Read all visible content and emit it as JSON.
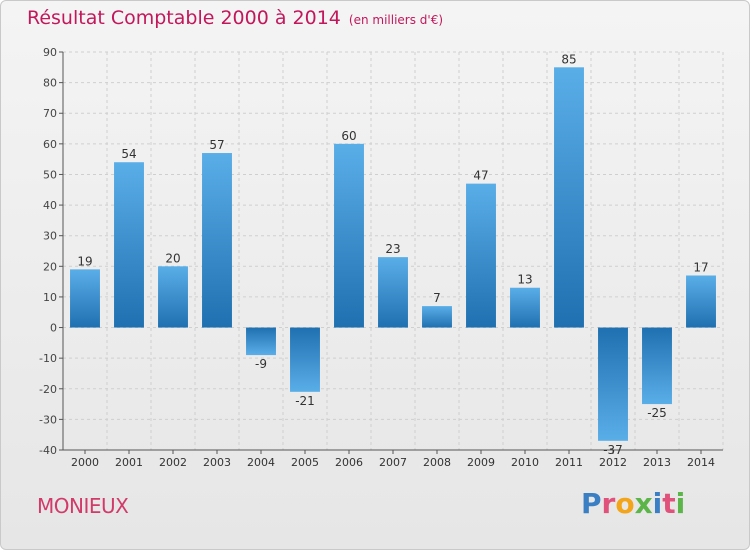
{
  "header": {
    "title": "Résultat Comptable 2000 à 2014",
    "subtitle": "(en milliers d'€)"
  },
  "footer": {
    "town": "MONIEUX",
    "logo_letters": [
      "P",
      "r",
      "o",
      "x",
      "i",
      "t",
      "i"
    ],
    "logo_colors": [
      "#3a7fc4",
      "#e0527c",
      "#f2a51a",
      "#5bb548",
      "#3a7fc4",
      "#e0527c",
      "#5bb548"
    ]
  },
  "chart_data": {
    "type": "bar",
    "categories": [
      "2000",
      "2001",
      "2002",
      "2003",
      "2004",
      "2005",
      "2006",
      "2007",
      "2008",
      "2009",
      "2010",
      "2011",
      "2012",
      "2013",
      "2014"
    ],
    "values": [
      19,
      54,
      20,
      57,
      -9,
      -21,
      60,
      23,
      7,
      47,
      13,
      85,
      -37,
      -25,
      17
    ],
    "ylim": [
      -40,
      90
    ],
    "yticks": [
      -40,
      -30,
      -20,
      -10,
      0,
      10,
      20,
      30,
      40,
      50,
      60,
      70,
      80,
      90
    ],
    "grid": true,
    "bar_color_light": "#5aaee8",
    "bar_color_dark": "#1f70b0"
  }
}
